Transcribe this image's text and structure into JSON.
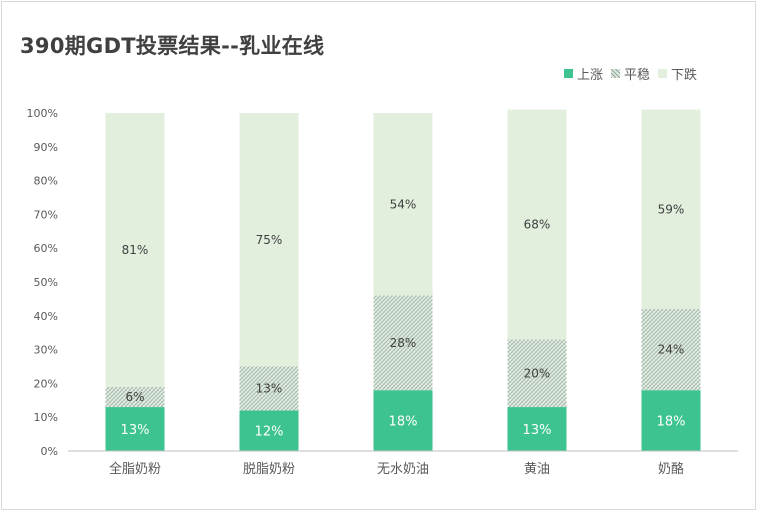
{
  "chart_data": {
    "type": "bar",
    "stacked": true,
    "percent_stacked": true,
    "title": "390期GDT投票结果--乳业在线",
    "categories": [
      "全脂奶粉",
      "脱脂奶粉",
      "无水奶油",
      "黄油",
      "奶酪"
    ],
    "series": [
      {
        "name": "上涨",
        "values": [
          13,
          12,
          18,
          13,
          18
        ],
        "labels": [
          "13%",
          "12%",
          "18%",
          "13%",
          "18%"
        ],
        "color": "#3cc38f",
        "pattern": "solid"
      },
      {
        "name": "平稳",
        "values": [
          6,
          13,
          28,
          20,
          24
        ],
        "labels": [
          "6%",
          "13%",
          "28%",
          "20%",
          "24%"
        ],
        "color": "#8fa89a",
        "pattern": "crosshatch"
      },
      {
        "name": "下跌",
        "values": [
          81,
          75,
          54,
          68,
          59
        ],
        "labels": [
          "81%",
          "75%",
          "54%",
          "68%",
          "59%"
        ],
        "color": "#e2efdc",
        "pattern": "solid"
      }
    ],
    "ylim": [
      0,
      100
    ],
    "yticks": [
      "0%",
      "10%",
      "20%",
      "30%",
      "40%",
      "50%",
      "60%",
      "70%",
      "80%",
      "90%",
      "100%"
    ],
    "grid": false,
    "legend_position": "top-right"
  }
}
